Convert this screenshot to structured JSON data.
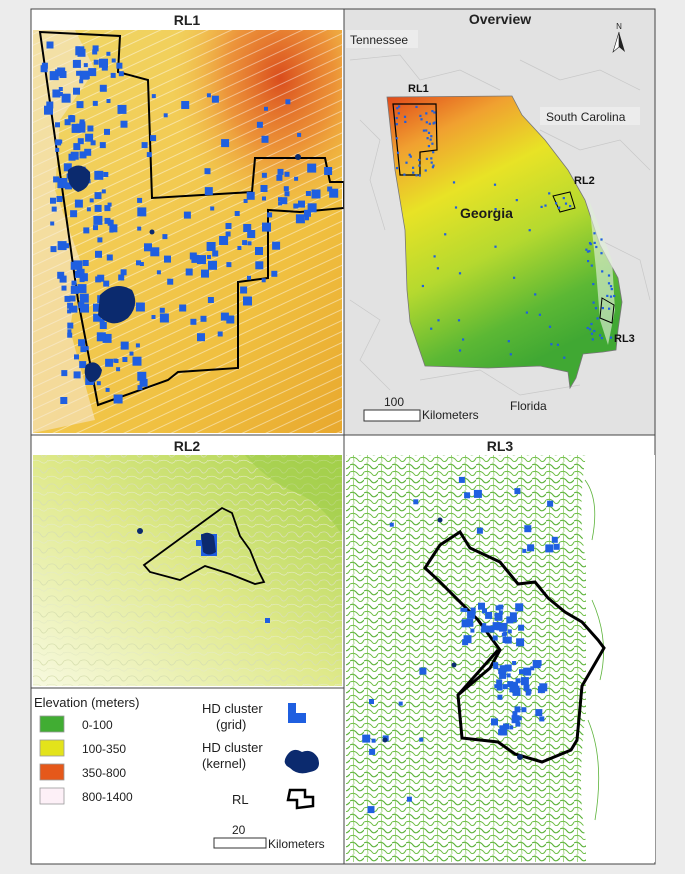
{
  "panels": {
    "rl1": {
      "title": "RL1"
    },
    "overview": {
      "title": "Overview",
      "north_label": "N"
    },
    "rl2": {
      "title": "RL2"
    },
    "rl3": {
      "title": "RL3"
    }
  },
  "overview_labels": {
    "tennessee": "Tennessee",
    "south_carolina": "South Carolina",
    "georgia": "Georgia",
    "florida": "Florida",
    "rl1": "RL1",
    "rl2": "RL2",
    "rl3": "RL3",
    "scale_value": "100",
    "scale_unit": "Kilometers"
  },
  "legend": {
    "elevation_title": "Elevation (meters)",
    "classes": [
      {
        "label": "0-100",
        "color": "#41ad33"
      },
      {
        "label": "100-350",
        "color": "#e3e31b"
      },
      {
        "label": "350-800",
        "color": "#e5581a"
      },
      {
        "label": "800-1400",
        "color": "#fdf0f7"
      }
    ],
    "hd_grid_line1": "HD cluster",
    "hd_grid_line2": "(grid)",
    "hd_kernel_line1": "HD cluster",
    "hd_kernel_line2": "(kernel)",
    "rl_label": "RL",
    "scale_value": "20",
    "scale_unit": "Kilometers"
  },
  "colors": {
    "grid_cluster": "#1f5fe0",
    "kernel_cluster": "#0b2a6e",
    "boundary": "#000000"
  }
}
